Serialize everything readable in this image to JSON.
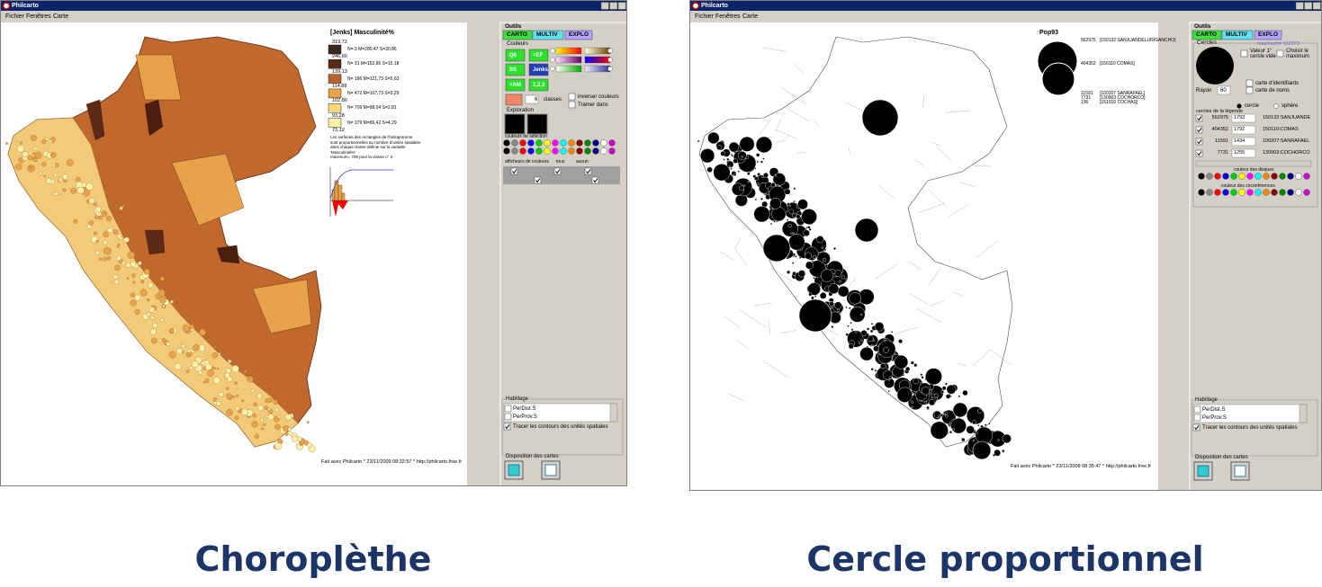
{
  "windows": [
    {
      "title": "Philcarto",
      "menu": [
        "Fichier",
        "Fenêtres",
        "Carte"
      ],
      "map_title": "[Jenks] Masculinité%",
      "legend": {
        "breaks": [
          "319,72",
          "246,69",
          "139,13",
          "114,88",
          "102,80",
          "93,28",
          "73,12"
        ],
        "classes": [
          "N= 3  M=280,47  S=30,86",
          "N= 31  M=152,86  S=15,18",
          "N= 186  M=121,73  S=5,63",
          "N= 472  M=107,73  S=3,29",
          "N= 709  M=98,04  S=2,81",
          "N= 379  M=86,42  S=4,29"
        ]
      },
      "note": [
        "Les surfaces des rectangles de l'histogramme",
        "sont proportionnelles au nombre d'unités spatiales",
        "dans chaque classe définie sur la variable",
        "'Masculinité%'",
        "maximum= 709 pour la classe n° 2"
      ],
      "footer": "Fait avec Philcarto * 23/11/2009 08:32:57 * http://philcarto.free.fr",
      "panel": {
        "section": "Outils",
        "tabs": [
          "CARTO",
          "MULTIV",
          "EXPLO"
        ],
        "colors": "Couleurs",
        "buttons": [
          "Q6",
          "=EF",
          "SS",
          "Jenks",
          "=AM",
          "1,2,3"
        ],
        "class_count": "6",
        "classes": "classes",
        "invert": "inverser couleurs",
        "pattern": "Tramer dans",
        "exploration": "Exploration",
        "selection_colors": "couleurs de sélection",
        "displays": "afficheurs de couleurs",
        "all": "tous",
        "none": "aucun",
        "dressing": "Habillage",
        "layers": [
          "PerDist.S",
          "PerProv.S"
        ],
        "contours": "Tracer les contours des unités spatiales",
        "layout": "Disposition des cartes"
      }
    },
    {
      "title": "Philcarto",
      "menu": [
        "Fichier",
        "Fenêtres",
        "Carte"
      ],
      "map_title": "Pop93",
      "legend": {
        "values": [
          "562975",
          "404352",
          "11591",
          "7731",
          "136"
        ],
        "labels": [
          "[150132 SANJUANDELURIGANCHO]",
          "[150110 COMAS]",
          "[100207 SANRAFAEL]",
          "[130903 COCHORCO]",
          "[151010 COCHAS]"
        ]
      },
      "footer": "Fait avec Philcarto * 23/11/2009 08:35:47 * http://philcarto.free.fr",
      "panel": {
        "section": "Outils",
        "tabs": [
          "CARTO",
          "MULTIV",
          "EXPLO"
        ],
        "circles": "Cercles",
        "maximum": "maximum= 562975",
        "empty_first": [
          "Valeur 1°",
          "cercle vide"
        ],
        "choose_max": [
          "Choisir le",
          "maximum"
        ],
        "radius": "Rayon",
        "radius_value": "60",
        "id_map": "carte d'identifiants",
        "name_map": "carte de noms",
        "shapes": [
          "cercle",
          "sphère"
        ],
        "legend_circles": "cercles de la légende",
        "rows": [
          [
            "562975",
            "1793",
            "150132:SANJUANDE"
          ],
          [
            "404352",
            "1792",
            "150110:COMAS"
          ],
          [
            "11591",
            "1434",
            "100207:SANRAFAEL"
          ],
          [
            "7731",
            "1255",
            "130903:COCHORCO"
          ]
        ],
        "disc_color": "couleur des disques",
        "circ_color": "couleur des circonférences",
        "dressing": "Habillage",
        "layers": [
          "PerDist.S",
          "PerProv.S"
        ],
        "contours": "Tracer les contours des unités spatiales",
        "layout": "Disposition des cartes"
      }
    }
  ],
  "captions": [
    "Choroplèthe",
    "Cercle proportionnel"
  ]
}
